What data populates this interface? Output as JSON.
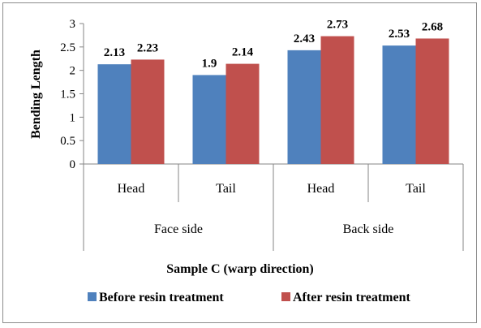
{
  "chart_data": {
    "type": "bar",
    "groups": [
      "Face side",
      "Back side"
    ],
    "categories": [
      "Head",
      "Tail",
      "Head",
      "Tail"
    ],
    "series": [
      {
        "name": "Before resin treatment",
        "values": [
          2.13,
          1.9,
          2.43,
          2.53
        ],
        "color": "#4f81bd"
      },
      {
        "name": "After resin treatment",
        "values": [
          2.23,
          2.14,
          2.73,
          2.68
        ],
        "color": "#c0504d"
      }
    ],
    "data_labels": [
      [
        "2.13",
        "1.9",
        "2.43",
        "2.53"
      ],
      [
        "2.23",
        "2.14",
        "2.73",
        "2.68"
      ]
    ],
    "yticks": [
      "0",
      "0.5",
      "1",
      "1.5",
      "2",
      "2.5",
      "3"
    ],
    "ylim": [
      0,
      3
    ],
    "ylabel": "Bending Length",
    "xlabel": "Sample C (warp direction)",
    "grid": false,
    "legend_position": "bottom"
  }
}
